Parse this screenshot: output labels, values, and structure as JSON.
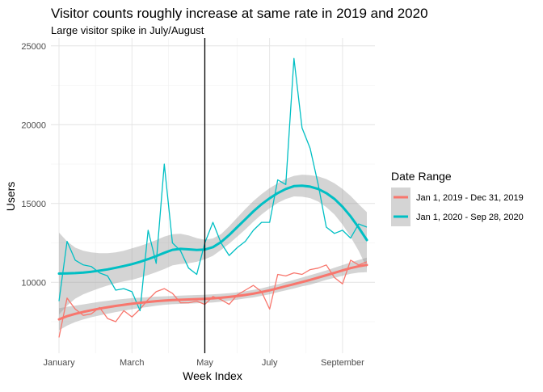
{
  "chart_data": {
    "type": "line",
    "title": "Visitor counts roughly increase at same rate in 2019 and 2020",
    "subtitle": "Large visitor spike in July/August",
    "xlabel": "Week Index",
    "ylabel": "Users",
    "xlim": [
      0,
      40
    ],
    "ylim": [
      5500,
      25500
    ],
    "x_ticks": [
      {
        "value": 1,
        "label": "January"
      },
      {
        "value": 10,
        "label": "March"
      },
      {
        "value": 19,
        "label": "May"
      },
      {
        "value": 27,
        "label": "July"
      },
      {
        "value": 36,
        "label": "September"
      }
    ],
    "y_ticks": [
      {
        "value": 10000,
        "label": "10000"
      },
      {
        "value": 15000,
        "label": "15000"
      },
      {
        "value": 20000,
        "label": "20000"
      },
      {
        "value": 25000,
        "label": "25000"
      }
    ],
    "grid": true,
    "vertical_reference_x": 19,
    "legend": {
      "title": "Date Range",
      "position": "right"
    },
    "series": [
      {
        "name": "Jan 1, 2019 - Dec 31, 2019",
        "color": "#F8766D",
        "x": [
          1,
          2,
          3,
          4,
          5,
          6,
          7,
          8,
          9,
          10,
          11,
          12,
          13,
          14,
          15,
          16,
          17,
          18,
          19,
          20,
          21,
          22,
          23,
          24,
          25,
          26,
          27,
          28,
          29,
          30,
          31,
          32,
          33,
          34,
          35,
          36,
          37,
          38,
          39
        ],
        "values": [
          6500,
          9000,
          8300,
          7900,
          8000,
          8400,
          7700,
          7500,
          8200,
          7800,
          8300,
          8900,
          9400,
          9600,
          9300,
          8700,
          8700,
          8800,
          8600,
          9100,
          8900,
          8600,
          9200,
          9500,
          9800,
          9400,
          8300,
          10500,
          10400,
          10600,
          10500,
          10800,
          10900,
          11100,
          10300,
          9900,
          11400,
          11100,
          11300
        ],
        "trend": [
          7650,
          7850,
          8000,
          8120,
          8230,
          8330,
          8420,
          8500,
          8570,
          8640,
          8700,
          8750,
          8800,
          8840,
          8870,
          8890,
          8910,
          8930,
          8950,
          8980,
          9020,
          9070,
          9130,
          9200,
          9280,
          9380,
          9490,
          9620,
          9750,
          9880,
          10020,
          10150,
          10300,
          10450,
          10600,
          10750,
          10900,
          11020,
          11100
        ],
        "band_upper": [
          8350,
          8450,
          8520,
          8600,
          8680,
          8760,
          8830,
          8890,
          8940,
          8990,
          9030,
          9060,
          9090,
          9110,
          9130,
          9150,
          9170,
          9190,
          9210,
          9240,
          9270,
          9310,
          9360,
          9430,
          9520,
          9620,
          9740,
          9870,
          10010,
          10150,
          10300,
          10450,
          10600,
          10750,
          10920,
          11090,
          11260,
          11420,
          11560
        ]
      },
      {
        "name": "Jan 1, 2020 - Sep 28, 2020",
        "color": "#00BFC4",
        "x": [
          1,
          2,
          3,
          4,
          5,
          6,
          7,
          8,
          9,
          10,
          11,
          12,
          13,
          14,
          15,
          16,
          17,
          18,
          19,
          20,
          21,
          22,
          23,
          24,
          25,
          26,
          27,
          28,
          29,
          30,
          31,
          32,
          33,
          34,
          35,
          36,
          37,
          38,
          39
        ],
        "values": [
          8800,
          12600,
          11400,
          11100,
          11000,
          10600,
          10400,
          9500,
          9600,
          9400,
          8200,
          13300,
          11200,
          17500,
          12500,
          12000,
          10900,
          10500,
          12500,
          13800,
          12500,
          11700,
          12200,
          12600,
          13300,
          13800,
          13800,
          16500,
          16200,
          24200,
          19800,
          18500,
          16200,
          13500,
          13100,
          13300,
          12800,
          13700,
          13500
        ],
        "trend": [
          10550,
          10560,
          10580,
          10620,
          10670,
          10740,
          10820,
          10920,
          11030,
          11150,
          11300,
          11470,
          11660,
          11870,
          12060,
          12120,
          12090,
          12050,
          12080,
          12230,
          12550,
          13000,
          13500,
          14000,
          14500,
          14950,
          15330,
          15660,
          15920,
          16100,
          16130,
          16070,
          15920,
          15660,
          15290,
          14790,
          14180,
          13470,
          12680
        ],
        "band_upper": [
          13150,
          12600,
          12200,
          12000,
          11900,
          11850,
          11850,
          11900,
          12000,
          12150,
          12300,
          12480,
          12680,
          12900,
          13050,
          13080,
          12970,
          12800,
          12700,
          12780,
          13050,
          13550,
          14100,
          14650,
          15150,
          15600,
          15970,
          16280,
          16560,
          16750,
          16830,
          16800,
          16720,
          16550,
          16280,
          15920,
          15480,
          14950,
          14450
        ]
      }
    ]
  }
}
